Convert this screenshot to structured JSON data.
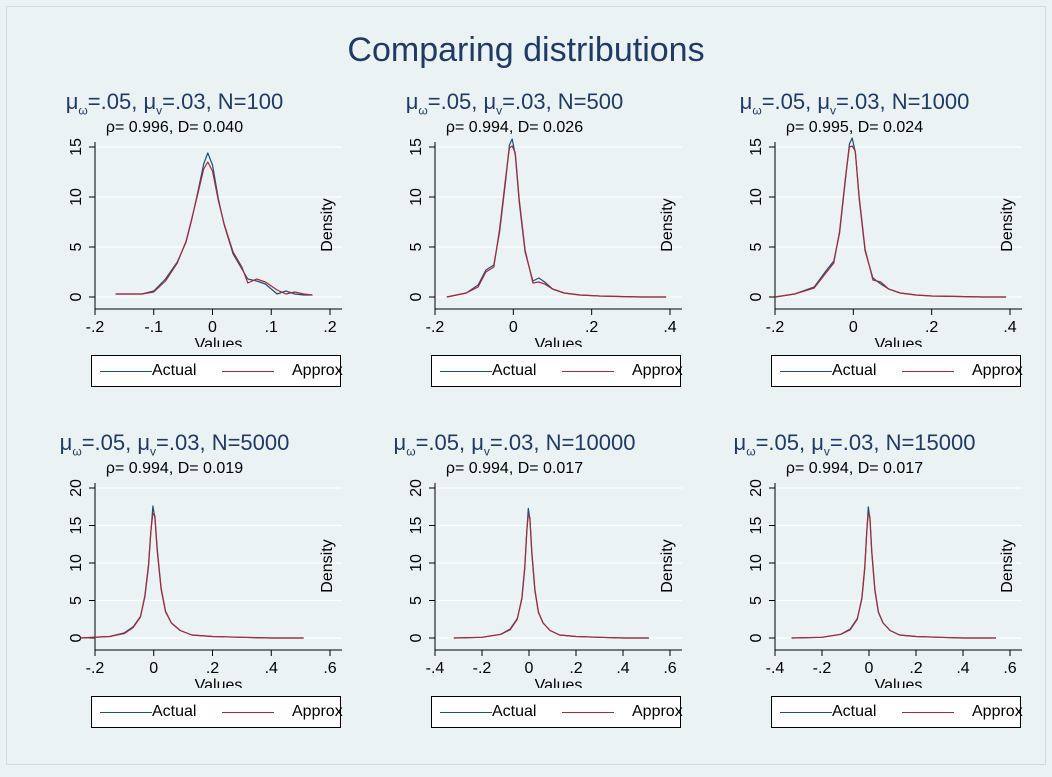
{
  "title": "Comparing distributions",
  "colors": {
    "actual": "#1f4e79",
    "approx": "#a52a3a",
    "title": "#1f3a64",
    "grid": "#ffffff",
    "background": "#eaf2f3"
  },
  "chart_data": [
    {
      "type": "line",
      "title": "μω=.05, μv=.03, N=100",
      "title_parts": {
        "mu": "μ",
        "sub_omega": "ω",
        "sub_v": "v",
        "omega_val": "=.05,",
        "v_val": "=.03,",
        "n": "N=100"
      },
      "subtitle": "ρ= 0.996, D= 0.040",
      "xlabel": "Values",
      "ylabel": "Density",
      "xlim": [
        -0.2,
        0.2
      ],
      "ylim": [
        0,
        15
      ],
      "xticks": [
        -0.2,
        -0.1,
        0,
        0.1,
        0.2
      ],
      "xtick_labels": [
        "-.2",
        "-.1",
        "0",
        ".1",
        ".2"
      ],
      "yticks": [
        0,
        5,
        10,
        15
      ],
      "ytick_labels": [
        "0",
        "5",
        "10",
        "15"
      ],
      "grid": true,
      "legend": "bottom",
      "series": [
        {
          "name": "Actual",
          "x": [
            -0.165,
            -0.12,
            -0.1,
            -0.08,
            -0.06,
            -0.045,
            -0.035,
            -0.025,
            -0.015,
            -0.008,
            0.0,
            0.01,
            0.02,
            0.035,
            0.05,
            0.06,
            0.075,
            0.09,
            0.11,
            0.125,
            0.14,
            0.155,
            0.17
          ],
          "y": [
            0.3,
            0.3,
            0.6,
            1.8,
            3.5,
            5.5,
            7.8,
            10.5,
            13.3,
            14.4,
            13.2,
            9.8,
            7.2,
            4.3,
            2.8,
            1.8,
            1.6,
            1.3,
            0.3,
            0.6,
            0.3,
            0.2,
            0.2
          ]
        },
        {
          "name": "Approx",
          "x": [
            -0.165,
            -0.12,
            -0.1,
            -0.08,
            -0.06,
            -0.045,
            -0.035,
            -0.025,
            -0.015,
            -0.008,
            0.0,
            0.01,
            0.02,
            0.035,
            0.05,
            0.06,
            0.075,
            0.09,
            0.11,
            0.125,
            0.14,
            0.155,
            0.17
          ],
          "y": [
            0.3,
            0.3,
            0.5,
            1.6,
            3.4,
            5.6,
            7.9,
            10.3,
            12.8,
            13.5,
            12.6,
            9.6,
            7.3,
            4.5,
            3.0,
            1.4,
            1.8,
            1.5,
            0.7,
            0.3,
            0.5,
            0.3,
            0.2
          ]
        }
      ]
    },
    {
      "type": "line",
      "title": "μω=.05, μv=.03, N=500",
      "title_parts": {
        "mu": "μ",
        "sub_omega": "ω",
        "sub_v": "v",
        "omega_val": "=.05,",
        "v_val": "=.03,",
        "n": "N=500"
      },
      "subtitle": "ρ= 0.994, D= 0.026",
      "xlabel": "Values",
      "ylabel": "Density",
      "xlim": [
        -0.2,
        0.4
      ],
      "ylim": [
        0,
        15
      ],
      "xticks": [
        -0.2,
        0,
        0.2,
        0.4
      ],
      "xtick_labels": [
        "-.2",
        "0",
        ".2",
        ".4"
      ],
      "yticks": [
        0,
        5,
        10,
        15
      ],
      "ytick_labels": [
        "0",
        "5",
        "10",
        "15"
      ],
      "grid": true,
      "legend": "bottom",
      "series": [
        {
          "name": "Actual",
          "x": [
            -0.17,
            -0.12,
            -0.09,
            -0.07,
            -0.05,
            -0.035,
            -0.02,
            -0.01,
            -0.003,
            0.005,
            0.015,
            0.03,
            0.05,
            0.065,
            0.08,
            0.1,
            0.13,
            0.17,
            0.22,
            0.27,
            0.33,
            0.39
          ],
          "y": [
            0.0,
            0.4,
            1.2,
            2.7,
            3.2,
            6.5,
            11.5,
            15.2,
            15.8,
            14.2,
            9.5,
            4.5,
            1.6,
            1.9,
            1.5,
            0.8,
            0.4,
            0.2,
            0.1,
            0.05,
            0.0,
            0.0
          ]
        },
        {
          "name": "Approx",
          "x": [
            -0.17,
            -0.12,
            -0.09,
            -0.07,
            -0.05,
            -0.035,
            -0.02,
            -0.01,
            -0.003,
            0.005,
            0.015,
            0.03,
            0.05,
            0.065,
            0.08,
            0.1,
            0.13,
            0.17,
            0.22,
            0.27,
            0.33,
            0.39
          ],
          "y": [
            0.0,
            0.4,
            1.0,
            2.5,
            3.0,
            6.8,
            11.8,
            14.9,
            15.1,
            14.4,
            9.8,
            4.7,
            1.4,
            1.5,
            1.3,
            0.8,
            0.4,
            0.2,
            0.1,
            0.05,
            0.0,
            0.0
          ]
        }
      ]
    },
    {
      "type": "line",
      "title": "μω=.05, μv=.03, N=1000",
      "title_parts": {
        "mu": "μ",
        "sub_omega": "ω",
        "sub_v": "v",
        "omega_val": "=.05,",
        "v_val": "=.03,",
        "n": "N=1000"
      },
      "subtitle": "ρ= 0.995, D= 0.024",
      "xlabel": "Values",
      "ylabel": "Density",
      "xlim": [
        -0.2,
        0.4
      ],
      "ylim": [
        0,
        15
      ],
      "xticks": [
        -0.2,
        0,
        0.2,
        0.4
      ],
      "xtick_labels": [
        "-.2",
        "0",
        ".2",
        ".4"
      ],
      "yticks": [
        0,
        5,
        10,
        15
      ],
      "ytick_labels": [
        "0",
        "5",
        "10",
        "15"
      ],
      "grid": true,
      "legend": "bottom",
      "series": [
        {
          "name": "Actual",
          "x": [
            -0.2,
            -0.15,
            -0.1,
            -0.07,
            -0.05,
            -0.035,
            -0.02,
            -0.01,
            -0.003,
            0.005,
            0.015,
            0.03,
            0.05,
            0.07,
            0.09,
            0.12,
            0.16,
            0.2,
            0.27,
            0.33,
            0.39
          ],
          "y": [
            0.0,
            0.3,
            1.0,
            2.6,
            3.6,
            6.4,
            11.8,
            15.3,
            15.9,
            14.5,
            9.8,
            4.6,
            1.9,
            1.3,
            0.8,
            0.4,
            0.2,
            0.1,
            0.05,
            0.0,
            0.0
          ]
        },
        {
          "name": "Approx",
          "x": [
            -0.2,
            -0.15,
            -0.1,
            -0.07,
            -0.05,
            -0.035,
            -0.02,
            -0.01,
            -0.003,
            0.005,
            0.015,
            0.03,
            0.05,
            0.07,
            0.09,
            0.12,
            0.16,
            0.2,
            0.27,
            0.33,
            0.39
          ],
          "y": [
            0.0,
            0.3,
            0.9,
            2.4,
            3.4,
            6.6,
            12.0,
            15.0,
            15.1,
            14.6,
            10.0,
            4.8,
            1.7,
            1.5,
            0.8,
            0.4,
            0.2,
            0.1,
            0.05,
            0.0,
            0.0
          ]
        }
      ]
    },
    {
      "type": "line",
      "title": "μω=.05, μv=.03, N=5000",
      "title_parts": {
        "mu": "μ",
        "sub_omega": "ω",
        "sub_v": "v",
        "omega_val": "=.05,",
        "v_val": "=.03,",
        "n": "N=5000"
      },
      "subtitle": "ρ= 0.994, D= 0.019",
      "xlabel": "Values",
      "ylabel": "Density",
      "xlim": [
        -0.2,
        0.6
      ],
      "ylim": [
        0,
        20
      ],
      "xticks": [
        -0.2,
        0,
        0.2,
        0.4,
        0.6
      ],
      "xtick_labels": [
        "-.2",
        "0",
        ".2",
        ".4",
        ".6"
      ],
      "yticks": [
        0,
        5,
        10,
        15,
        20
      ],
      "ytick_labels": [
        "0",
        "5",
        "10",
        "15",
        "20"
      ],
      "grid": true,
      "legend": "bottom",
      "series": [
        {
          "name": "Actual",
          "x": [
            -0.25,
            -0.15,
            -0.1,
            -0.07,
            -0.045,
            -0.03,
            -0.018,
            -0.01,
            -0.003,
            0.004,
            0.012,
            0.025,
            0.04,
            0.06,
            0.09,
            0.13,
            0.2,
            0.3,
            0.4,
            0.51
          ],
          "y": [
            0.0,
            0.2,
            0.7,
            1.5,
            2.9,
            5.5,
            9.5,
            14.0,
            17.6,
            16.0,
            11.5,
            6.5,
            3.5,
            2.0,
            1.0,
            0.4,
            0.2,
            0.1,
            0.0,
            0.0
          ]
        },
        {
          "name": "Approx",
          "x": [
            -0.25,
            -0.15,
            -0.1,
            -0.07,
            -0.045,
            -0.03,
            -0.018,
            -0.01,
            -0.003,
            0.004,
            0.012,
            0.025,
            0.04,
            0.06,
            0.09,
            0.13,
            0.2,
            0.3,
            0.4,
            0.51
          ],
          "y": [
            0.0,
            0.2,
            0.6,
            1.4,
            2.8,
            5.7,
            9.8,
            14.2,
            16.6,
            16.3,
            11.8,
            6.7,
            3.6,
            2.0,
            1.0,
            0.4,
            0.2,
            0.1,
            0.0,
            0.0
          ]
        }
      ]
    },
    {
      "type": "line",
      "title": "μω=.05, μv=.03, N=10000",
      "title_parts": {
        "mu": "μ",
        "sub_omega": "ω",
        "sub_v": "v",
        "omega_val": "=.05,",
        "v_val": "=.03,",
        "n": "N=10000"
      },
      "subtitle": "ρ= 0.994, D= 0.017",
      "xlabel": "Values",
      "ylabel": "Density",
      "xlim": [
        -0.4,
        0.6
      ],
      "ylim": [
        0,
        20
      ],
      "xticks": [
        -0.4,
        -0.2,
        0,
        0.2,
        0.4,
        0.6
      ],
      "xtick_labels": [
        "-.4",
        "-.2",
        "0",
        ".2",
        ".4",
        ".6"
      ],
      "yticks": [
        0,
        5,
        10,
        15,
        20
      ],
      "ytick_labels": [
        "0",
        "5",
        "10",
        "15",
        "20"
      ],
      "grid": true,
      "legend": "bottom",
      "series": [
        {
          "name": "Actual",
          "x": [
            -0.32,
            -0.2,
            -0.12,
            -0.08,
            -0.05,
            -0.03,
            -0.018,
            -0.01,
            -0.003,
            0.004,
            0.012,
            0.025,
            0.04,
            0.06,
            0.09,
            0.13,
            0.2,
            0.3,
            0.4,
            0.51
          ],
          "y": [
            0.0,
            0.1,
            0.5,
            1.2,
            2.6,
            5.2,
            9.3,
            14.0,
            17.3,
            15.8,
            11.3,
            6.3,
            3.4,
            2.0,
            1.0,
            0.4,
            0.2,
            0.1,
            0.0,
            0.0
          ]
        },
        {
          "name": "Approx",
          "x": [
            -0.32,
            -0.2,
            -0.12,
            -0.08,
            -0.05,
            -0.03,
            -0.018,
            -0.01,
            -0.003,
            0.004,
            0.012,
            0.025,
            0.04,
            0.06,
            0.09,
            0.13,
            0.2,
            0.3,
            0.4,
            0.51
          ],
          "y": [
            0.0,
            0.1,
            0.5,
            1.1,
            2.5,
            5.4,
            9.6,
            14.1,
            16.4,
            16.1,
            11.6,
            6.5,
            3.5,
            2.0,
            1.0,
            0.4,
            0.2,
            0.1,
            0.0,
            0.0
          ]
        }
      ]
    },
    {
      "type": "line",
      "title": "μω=.05, μv=.03, N=15000",
      "title_parts": {
        "mu": "μ",
        "sub_omega": "ω",
        "sub_v": "v",
        "omega_val": "=.05,",
        "v_val": "=.03,",
        "n": "N=15000"
      },
      "subtitle": "ρ= 0.994, D= 0.017",
      "xlabel": "Values",
      "ylabel": "Density",
      "xlim": [
        -0.4,
        0.6
      ],
      "ylim": [
        0,
        20
      ],
      "xticks": [
        -0.4,
        -0.2,
        0,
        0.2,
        0.4,
        0.6
      ],
      "xtick_labels": [
        "-.4",
        "-.2",
        "0",
        ".2",
        ".4",
        ".6"
      ],
      "yticks": [
        0,
        5,
        10,
        15,
        20
      ],
      "ytick_labels": [
        "0",
        "5",
        "10",
        "15",
        "20"
      ],
      "grid": true,
      "legend": "bottom",
      "series": [
        {
          "name": "Actual",
          "x": [
            -0.33,
            -0.2,
            -0.12,
            -0.08,
            -0.05,
            -0.03,
            -0.018,
            -0.01,
            -0.003,
            0.004,
            0.012,
            0.025,
            0.04,
            0.06,
            0.09,
            0.13,
            0.2,
            0.3,
            0.4,
            0.54
          ],
          "y": [
            0.0,
            0.1,
            0.5,
            1.2,
            2.6,
            5.2,
            9.3,
            14.0,
            17.5,
            15.9,
            11.3,
            6.3,
            3.4,
            2.0,
            1.0,
            0.4,
            0.2,
            0.1,
            0.0,
            0.0
          ]
        },
        {
          "name": "Approx",
          "x": [
            -0.33,
            -0.2,
            -0.12,
            -0.08,
            -0.05,
            -0.03,
            -0.018,
            -0.01,
            -0.003,
            0.004,
            0.012,
            0.025,
            0.04,
            0.06,
            0.09,
            0.13,
            0.2,
            0.3,
            0.4,
            0.54
          ],
          "y": [
            0.0,
            0.1,
            0.5,
            1.1,
            2.5,
            5.4,
            9.6,
            14.1,
            16.6,
            16.2,
            11.6,
            6.5,
            3.5,
            2.0,
            1.0,
            0.4,
            0.2,
            0.1,
            0.0,
            0.0
          ]
        }
      ]
    }
  ]
}
